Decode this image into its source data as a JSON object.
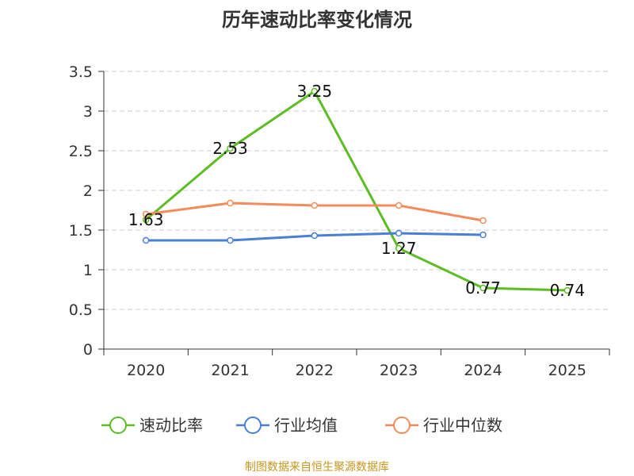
{
  "chart_data": {
    "type": "line",
    "title": "历年速动比率变化情况",
    "categories": [
      "2020",
      "2021",
      "2022",
      "2023",
      "2024",
      "2025"
    ],
    "ylim": [
      0,
      3.5
    ],
    "yticks": [
      "0",
      "0.5",
      "1",
      "1.5",
      "2",
      "2.5",
      "3",
      "3.5"
    ],
    "ytick_values": [
      0,
      0.5,
      1,
      1.5,
      2,
      2.5,
      3,
      3.5
    ],
    "grid": true,
    "legend_position": "bottom",
    "series": [
      {
        "name": "速动比率",
        "color": "#5cbd23",
        "values": [
          1.63,
          2.53,
          3.25,
          1.27,
          0.77,
          0.74
        ],
        "labels": [
          "1.63",
          "2.53",
          "3.25",
          "1.27",
          "0.77",
          "0.74"
        ]
      },
      {
        "name": "行业均值",
        "color": "#4a7fd6",
        "values": [
          1.37,
          1.37,
          1.43,
          1.46,
          1.44,
          null
        ]
      },
      {
        "name": "行业中位数",
        "color": "#f38c5a",
        "values": [
          1.7,
          1.84,
          1.81,
          1.81,
          1.62,
          null
        ]
      }
    ]
  },
  "footer": {
    "source": "制图数据来自恒生聚源数据库"
  }
}
